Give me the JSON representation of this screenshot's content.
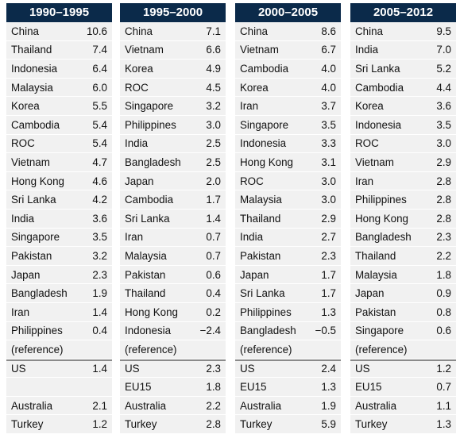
{
  "panels": [
    {
      "title": "1990–1995",
      "rows": [
        {
          "name": "China",
          "value": "10.6"
        },
        {
          "name": "Thailand",
          "value": "7.4"
        },
        {
          "name": "Indonesia",
          "value": "6.4"
        },
        {
          "name": "Malaysia",
          "value": "6.0"
        },
        {
          "name": "Korea",
          "value": "5.5"
        },
        {
          "name": "Cambodia",
          "value": "5.4"
        },
        {
          "name": "ROC",
          "value": "5.4"
        },
        {
          "name": "Vietnam",
          "value": "4.7"
        },
        {
          "name": "Hong Kong",
          "value": "4.6"
        },
        {
          "name": "Sri Lanka",
          "value": "4.2"
        },
        {
          "name": "India",
          "value": "3.6"
        },
        {
          "name": "Singapore",
          "value": "3.5"
        },
        {
          "name": "Pakistan",
          "value": "3.2"
        },
        {
          "name": "Japan",
          "value": "2.3"
        },
        {
          "name": "Bangladesh",
          "value": "1.9"
        },
        {
          "name": "Iran",
          "value": "1.4"
        },
        {
          "name": "Philippines",
          "value": "0.4"
        },
        {
          "name": "(reference)",
          "value": ""
        }
      ],
      "refs": [
        {
          "name": "US",
          "value": "1.4"
        },
        {
          "name": "",
          "value": ""
        },
        {
          "name": "Australia",
          "value": "2.1"
        },
        {
          "name": "Turkey",
          "value": "1.2"
        }
      ]
    },
    {
      "title": "1995–2000",
      "rows": [
        {
          "name": "China",
          "value": "7.1"
        },
        {
          "name": "Vietnam",
          "value": "6.6"
        },
        {
          "name": "Korea",
          "value": "4.9"
        },
        {
          "name": "ROC",
          "value": "4.5"
        },
        {
          "name": "Singapore",
          "value": "3.2"
        },
        {
          "name": "Philippines",
          "value": "3.0"
        },
        {
          "name": "India",
          "value": "2.5"
        },
        {
          "name": "Bangladesh",
          "value": "2.5"
        },
        {
          "name": "Japan",
          "value": "2.0"
        },
        {
          "name": "Cambodia",
          "value": "1.7"
        },
        {
          "name": "Sri Lanka",
          "value": "1.4"
        },
        {
          "name": "Iran",
          "value": "0.7"
        },
        {
          "name": "Malaysia",
          "value": "0.7"
        },
        {
          "name": "Pakistan",
          "value": "0.6"
        },
        {
          "name": "Thailand",
          "value": "0.4"
        },
        {
          "name": "Hong Kong",
          "value": "0.2"
        },
        {
          "name": "Indonesia",
          "value": "−2.4"
        },
        {
          "name": "(reference)",
          "value": ""
        }
      ],
      "refs": [
        {
          "name": "US",
          "value": "2.3"
        },
        {
          "name": "EU15",
          "value": "1.8"
        },
        {
          "name": "Australia",
          "value": "2.2"
        },
        {
          "name": "Turkey",
          "value": "2.8"
        }
      ]
    },
    {
      "title": "2000–2005",
      "rows": [
        {
          "name": "China",
          "value": "8.6"
        },
        {
          "name": "Vietnam",
          "value": "6.7"
        },
        {
          "name": "Cambodia",
          "value": "4.0"
        },
        {
          "name": "Korea",
          "value": "4.0"
        },
        {
          "name": "Iran",
          "value": "3.7"
        },
        {
          "name": "Singapore",
          "value": "3.5"
        },
        {
          "name": "Indonesia",
          "value": "3.3"
        },
        {
          "name": "Hong Kong",
          "value": "3.1"
        },
        {
          "name": "ROC",
          "value": "3.0"
        },
        {
          "name": "Malaysia",
          "value": "3.0"
        },
        {
          "name": "Thailand",
          "value": "2.9"
        },
        {
          "name": "India",
          "value": "2.7"
        },
        {
          "name": "Pakistan",
          "value": "2.3"
        },
        {
          "name": "Japan",
          "value": "1.7"
        },
        {
          "name": "Sri Lanka",
          "value": "1.7"
        },
        {
          "name": "Philippines",
          "value": "1.3"
        },
        {
          "name": "Bangladesh",
          "value": "−0.5"
        },
        {
          "name": "(reference)",
          "value": ""
        }
      ],
      "refs": [
        {
          "name": "US",
          "value": "2.4"
        },
        {
          "name": "EU15",
          "value": "1.3"
        },
        {
          "name": "Australia",
          "value": "1.9"
        },
        {
          "name": "Turkey",
          "value": "5.9"
        }
      ]
    },
    {
      "title": "2005–2012",
      "rows": [
        {
          "name": "China",
          "value": "9.5"
        },
        {
          "name": "India",
          "value": "7.0"
        },
        {
          "name": "Sri Lanka",
          "value": "5.2"
        },
        {
          "name": "Cambodia",
          "value": "4.4"
        },
        {
          "name": "Korea",
          "value": "3.6"
        },
        {
          "name": "Indonesia",
          "value": "3.5"
        },
        {
          "name": "ROC",
          "value": "3.0"
        },
        {
          "name": "Vietnam",
          "value": "2.9"
        },
        {
          "name": "Iran",
          "value": "2.8"
        },
        {
          "name": "Philippines",
          "value": "2.8"
        },
        {
          "name": "Hong Kong",
          "value": "2.8"
        },
        {
          "name": "Bangladesh",
          "value": "2.3"
        },
        {
          "name": "Thailand",
          "value": "2.2"
        },
        {
          "name": "Malaysia",
          "value": "1.8"
        },
        {
          "name": "Japan",
          "value": "0.9"
        },
        {
          "name": "Pakistan",
          "value": "0.8"
        },
        {
          "name": "Singapore",
          "value": "0.6"
        },
        {
          "name": "(reference)",
          "value": ""
        }
      ],
      "refs": [
        {
          "name": "US",
          "value": "1.2"
        },
        {
          "name": "EU15",
          "value": "0.7"
        },
        {
          "name": "Australia",
          "value": "1.1"
        },
        {
          "name": "Turkey",
          "value": "1.3"
        }
      ]
    }
  ]
}
